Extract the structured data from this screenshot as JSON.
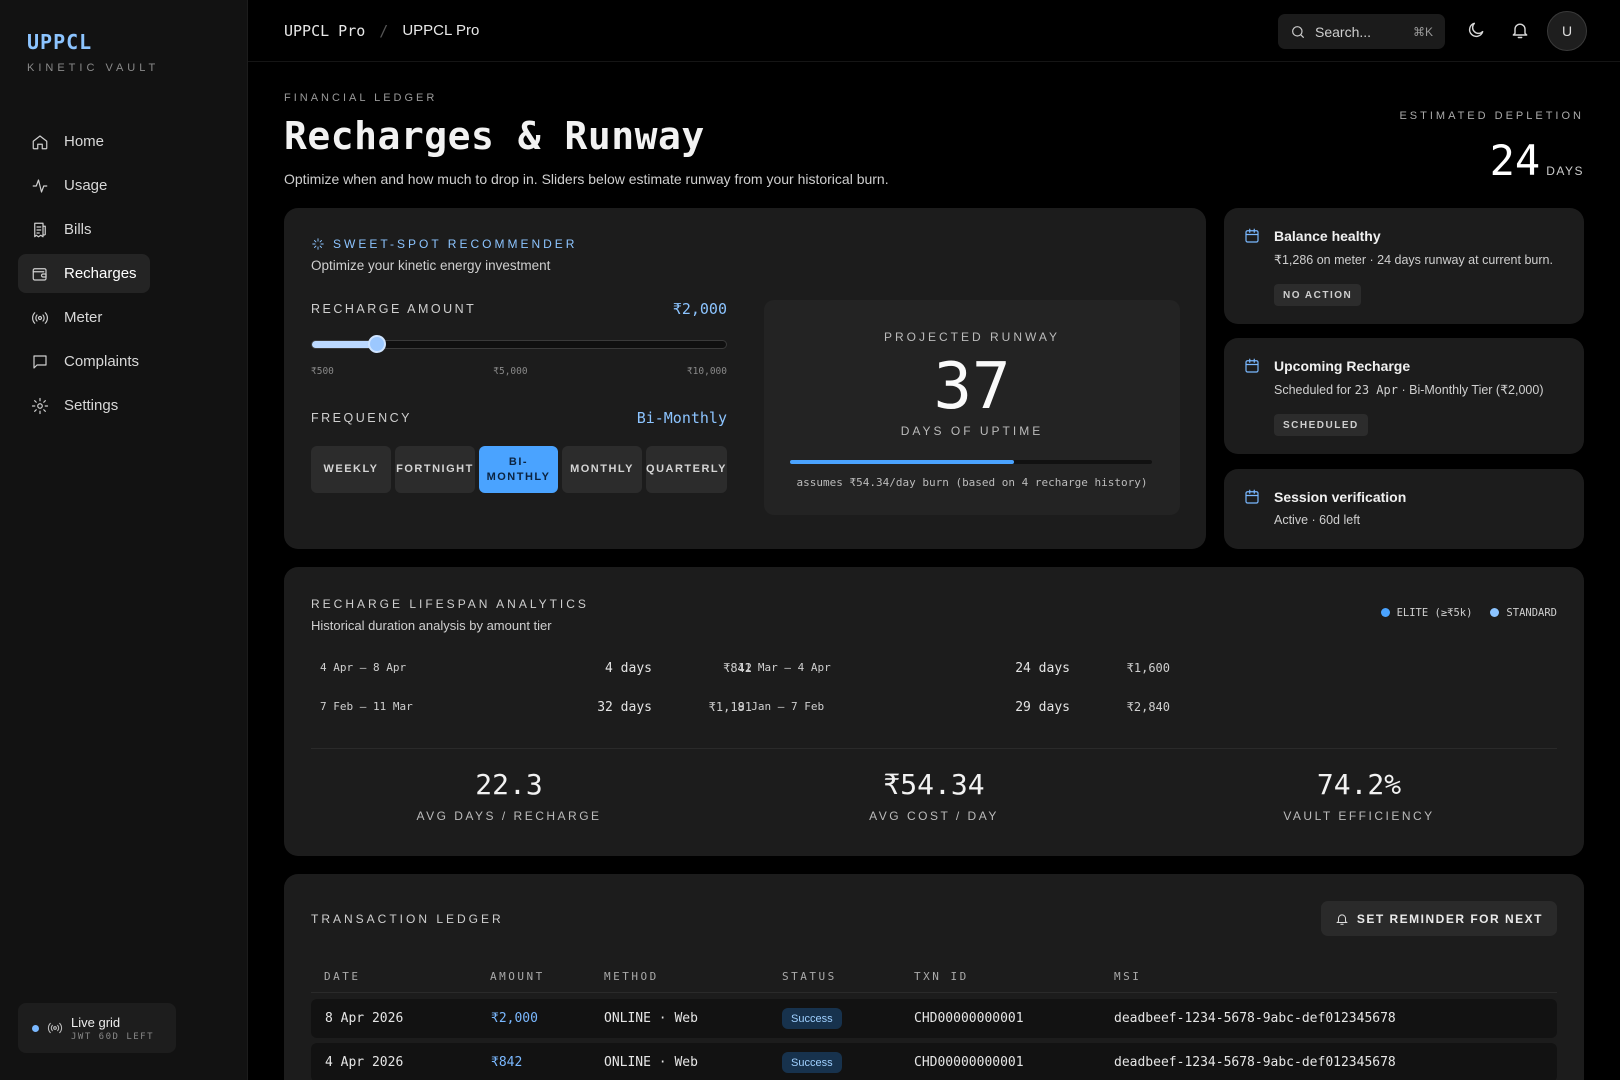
{
  "brand": {
    "title": "UPPCL",
    "subtitle": "KINETIC VAULT"
  },
  "nav": [
    {
      "label": "Home",
      "icon": "home-icon"
    },
    {
      "label": "Usage",
      "icon": "activity-icon"
    },
    {
      "label": "Bills",
      "icon": "receipt-icon"
    },
    {
      "label": "Recharges",
      "icon": "wallet-icon",
      "active": true
    },
    {
      "label": "Meter",
      "icon": "radio-icon"
    },
    {
      "label": "Complaints",
      "icon": "message-icon"
    },
    {
      "label": "Settings",
      "icon": "gear-icon"
    }
  ],
  "live": {
    "title": "Live grid",
    "subtitle": "JWT 60D LEFT"
  },
  "topbar": {
    "breadcrumb": [
      "UPPCL Pro",
      "UPPCL Pro"
    ],
    "search_placeholder": "Search...",
    "search_shortcut": "⌘K",
    "avatar": "U"
  },
  "header": {
    "eyebrow": "FINANCIAL LEDGER",
    "title": "Recharges & Runway",
    "subtitle": "Optimize when and how much to drop in. Sliders below estimate runway from your historical burn.",
    "depletion_label": "ESTIMATED DEPLETION",
    "depletion_value": "24",
    "depletion_unit": "DAYS"
  },
  "recommender": {
    "eyebrow": "SWEET-SPOT RECOMMENDER",
    "subtitle": "Optimize your kinetic energy investment",
    "amount_label": "RECHARGE AMOUNT",
    "amount_value": "₹2,000",
    "slider_fraction": 0.158,
    "ticks": [
      "₹500",
      "₹5,000",
      "₹10,000"
    ],
    "frequency_label": "FREQUENCY",
    "frequency_value": "Bi-Monthly",
    "frequencies": [
      {
        "label": "WEEKLY",
        "active": false
      },
      {
        "label": "FORTNIGHT",
        "active": false
      },
      {
        "label": "BI-MONTHLY",
        "active": true
      },
      {
        "label": "MONTHLY",
        "active": false
      },
      {
        "label": "QUARTERLY",
        "active": false
      }
    ],
    "projection": {
      "label": "PROJECTED RUNWAY",
      "value": "37",
      "unit": "DAYS OF UPTIME",
      "bar_fraction": 0.62,
      "note": "assumes ₹54.34/day burn (based on 4 recharge history)"
    }
  },
  "side_cards": [
    {
      "title": "Balance healthy",
      "body": "₹1,286 on meter · 24 days runway at current burn.",
      "badge": "NO ACTION"
    },
    {
      "title": "Upcoming Recharge",
      "body_prefix": "Scheduled for",
      "body_date": "23 Apr",
      "body_suffix": "· Bi-Monthly Tier (₹2,000)",
      "badge": "SCHEDULED"
    },
    {
      "title": "Session verification",
      "body": "Active · 60d left"
    }
  ],
  "analytics": {
    "title": "RECHARGE LIFESPAN ANALYTICS",
    "subtitle": "Historical duration analysis by amount tier",
    "legend": [
      {
        "label": "ELITE (≥₹5k)",
        "color": "#4aa3ff"
      },
      {
        "label": "STANDARD",
        "color": "#8cc4ff"
      }
    ],
    "periods": [
      {
        "range": "4 Apr – 8 Apr",
        "days": "4 days",
        "amount": "₹842"
      },
      {
        "range": "11 Mar – 4 Apr",
        "days": "24 days",
        "amount": "₹1,600"
      },
      {
        "range": "7 Feb – 11 Mar",
        "days": "32 days",
        "amount": "₹1,181"
      },
      {
        "range": "9 Jan – 7 Feb",
        "days": "29 days",
        "amount": "₹2,840"
      }
    ],
    "stats": [
      {
        "value": "22.3",
        "label": "AVG DAYS / RECHARGE"
      },
      {
        "value": "₹54.34",
        "label": "AVG COST / DAY"
      },
      {
        "value": "74.2%",
        "label": "VAULT EFFICIENCY"
      }
    ]
  },
  "ledger": {
    "title": "TRANSACTION LEDGER",
    "reminder_button": "SET REMINDER FOR NEXT",
    "columns": [
      "DATE",
      "AMOUNT",
      "METHOD",
      "STATUS",
      "TXN ID",
      "MSI"
    ],
    "rows": [
      {
        "date": "8 Apr 2026",
        "amount": "₹2,000",
        "method": "ONLINE · Web",
        "status": "Success",
        "txn_id": "CHD00000000001",
        "msi": "deadbeef-1234-5678-9abc-def012345678"
      },
      {
        "date": "4 Apr 2026",
        "amount": "₹842",
        "method": "ONLINE · Web",
        "status": "Success",
        "txn_id": "CHD00000000001",
        "msi": "deadbeef-1234-5678-9abc-def012345678"
      }
    ]
  }
}
